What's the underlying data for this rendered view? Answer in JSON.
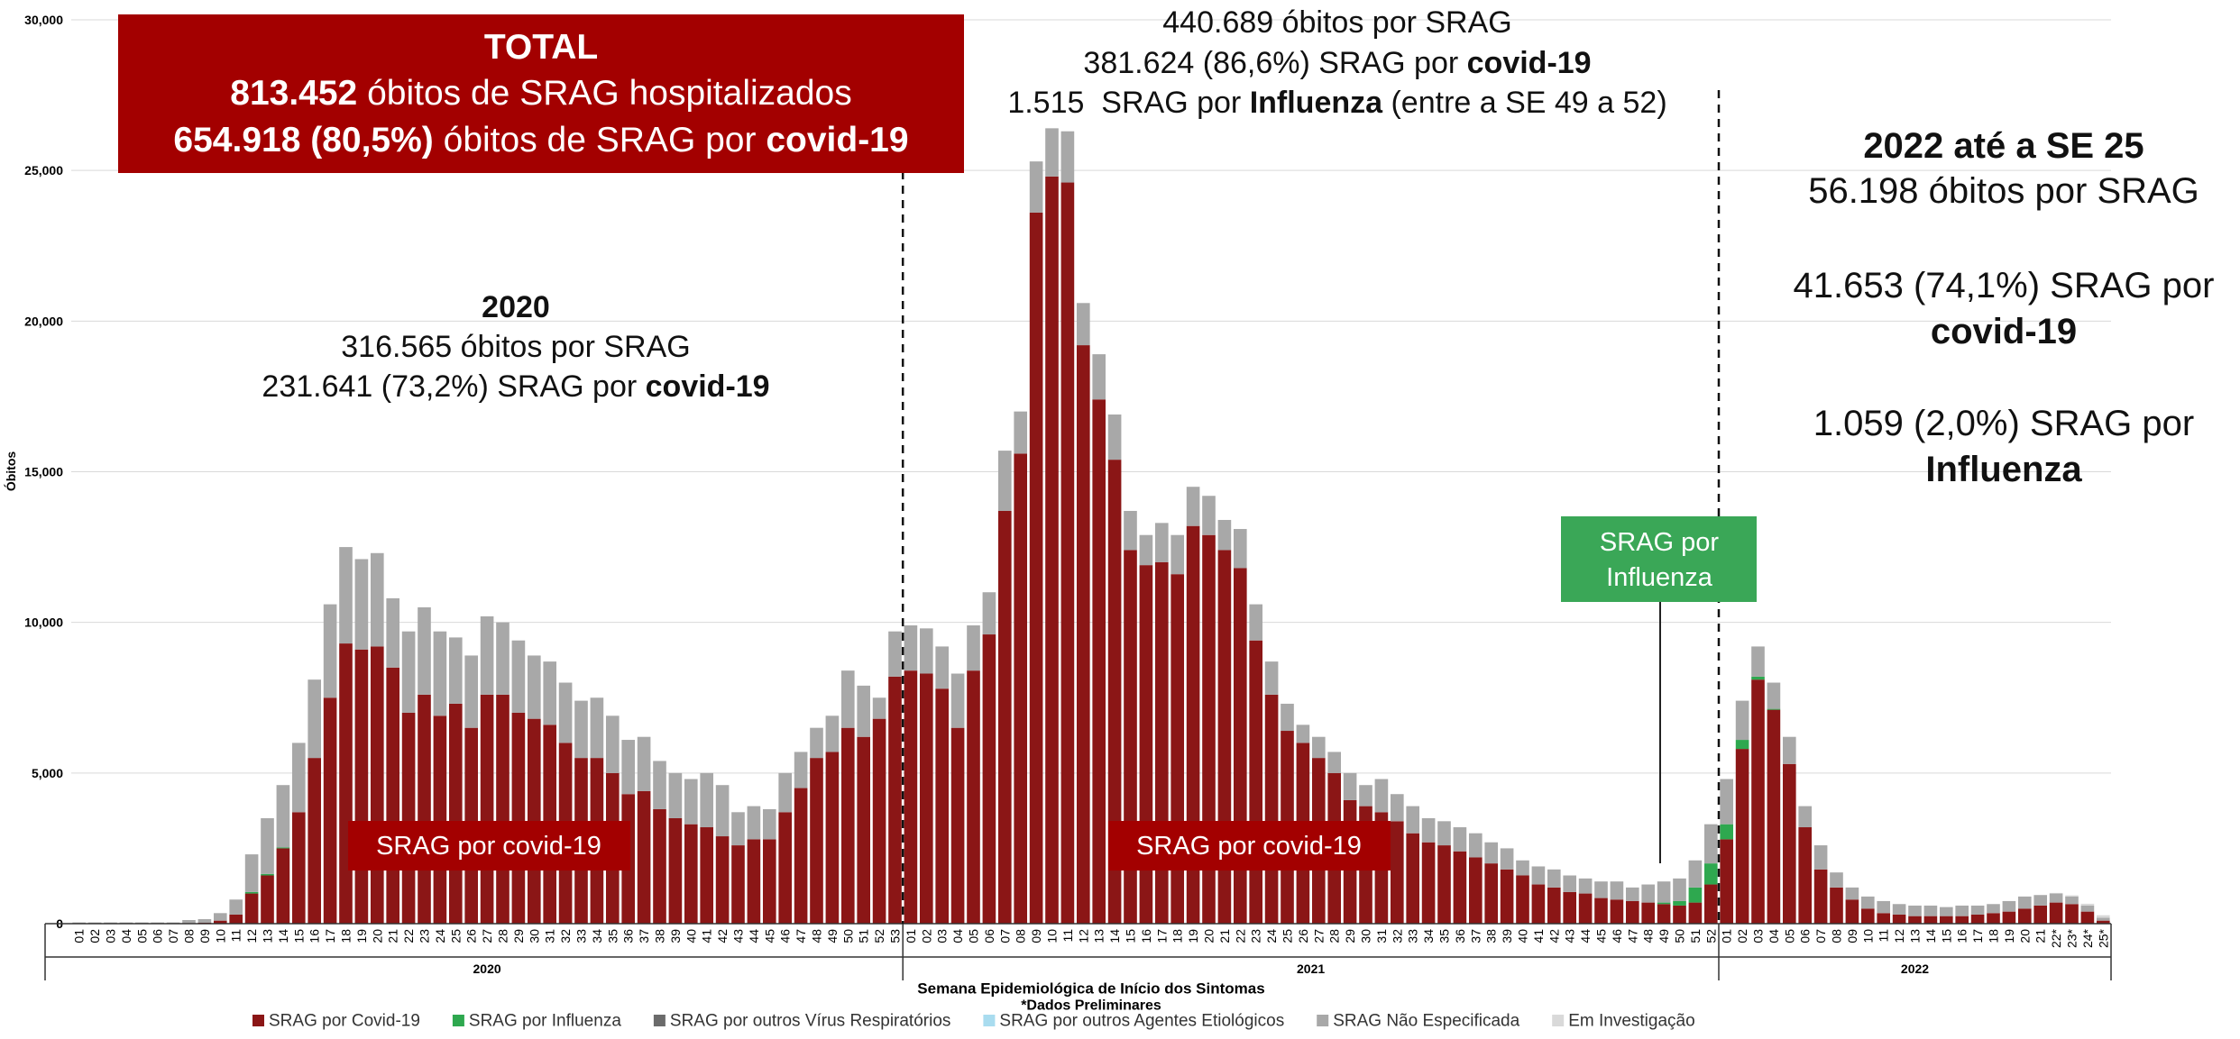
{
  "chart_data": {
    "type": "stacked_bar",
    "y_label": "Óbitos",
    "x_label": "Semana Epidemiológica de Início dos Sintomas",
    "note": "*Dados Preliminares",
    "groups": [
      "2020",
      "2021",
      "2022"
    ],
    "categories": [
      "01",
      "02",
      "03",
      "04",
      "05",
      "06",
      "07",
      "08",
      "09",
      "10",
      "11",
      "12",
      "13",
      "14",
      "15",
      "16",
      "17",
      "18",
      "19",
      "20",
      "21",
      "22",
      "23",
      "24",
      "25",
      "26",
      "27",
      "28",
      "29",
      "30",
      "31",
      "32",
      "33",
      "34",
      "35",
      "36",
      "37",
      "38",
      "39",
      "40",
      "41",
      "42",
      "43",
      "44",
      "45",
      "46",
      "47",
      "48",
      "49",
      "50",
      "51",
      "52",
      "53",
      "01",
      "02",
      "03",
      "04",
      "05",
      "06",
      "07",
      "08",
      "09",
      "10",
      "11",
      "12",
      "13",
      "14",
      "15",
      "16",
      "17",
      "18",
      "19",
      "20",
      "21",
      "22",
      "23",
      "24",
      "25",
      "26",
      "27",
      "28",
      "29",
      "30",
      "31",
      "32",
      "33",
      "34",
      "35",
      "36",
      "37",
      "38",
      "39",
      "40",
      "41",
      "42",
      "43",
      "44",
      "45",
      "46",
      "47",
      "48",
      "49",
      "50",
      "51",
      "52",
      "01",
      "02",
      "03",
      "04",
      "05",
      "06",
      "07",
      "08",
      "09",
      "10",
      "11",
      "12",
      "13",
      "14",
      "15",
      "16",
      "17",
      "18",
      "19",
      "20",
      "21",
      "22*",
      "23*",
      "24*",
      "25*"
    ],
    "ylim": [
      0,
      30000
    ],
    "yticks": [
      0,
      {
        "value": 5000,
        "label": "5,000"
      },
      {
        "value": 10000,
        "label": "10,000"
      },
      {
        "value": 15000,
        "label": "15,000"
      },
      {
        "value": 20000,
        "label": "20,000"
      },
      {
        "value": 25000,
        "label": "25,000"
      },
      {
        "value": 30000,
        "label": "30,000"
      }
    ],
    "grid": true,
    "legend": "bottom",
    "series": [
      {
        "name": "SRAG por Covid-19",
        "color": "#8b1616",
        "values": [
          10,
          10,
          10,
          10,
          10,
          10,
          10,
          20,
          30,
          100,
          300,
          1000,
          1600,
          2500,
          3700,
          5500,
          7500,
          9300,
          9100,
          9200,
          8500,
          7000,
          7600,
          6900,
          7300,
          6500,
          7600,
          7600,
          7000,
          6800,
          6600,
          6000,
          5500,
          5500,
          5000,
          4300,
          4400,
          3800,
          3500,
          3300,
          3200,
          2900,
          2600,
          2800,
          2800,
          3700,
          4500,
          5500,
          5700,
          6500,
          6200,
          6800,
          8200,
          8400,
          8300,
          7800,
          6500,
          8400,
          9600,
          13700,
          15600,
          23600,
          24800,
          24600,
          19200,
          17400,
          15400,
          12400,
          11900,
          12000,
          11600,
          13200,
          12900,
          12400,
          11800,
          9400,
          7600,
          6400,
          6000,
          5500,
          5000,
          4100,
          3900,
          3700,
          3400,
          3000,
          2700,
          2600,
          2400,
          2200,
          2000,
          1800,
          1600,
          1300,
          1200,
          1050,
          1000,
          850,
          800,
          750,
          700,
          650,
          600,
          700,
          1300,
          2800,
          5800,
          8100,
          7100,
          5300,
          3200,
          1800,
          1200,
          800,
          500,
          350,
          300,
          250,
          250,
          250,
          250,
          300,
          350,
          400,
          500,
          600,
          700,
          650,
          400,
          100
        ]
      },
      {
        "name": "SRAG por Influenza",
        "color": "#2ea84f",
        "values": [
          0,
          0,
          0,
          0,
          0,
          0,
          0,
          0,
          0,
          0,
          0,
          50,
          50,
          30,
          0,
          0,
          0,
          0,
          0,
          0,
          0,
          0,
          0,
          0,
          0,
          0,
          0,
          0,
          0,
          0,
          0,
          0,
          0,
          0,
          0,
          0,
          0,
          0,
          0,
          0,
          0,
          0,
          0,
          0,
          0,
          0,
          0,
          0,
          0,
          0,
          0,
          0,
          0,
          0,
          0,
          0,
          0,
          0,
          0,
          0,
          0,
          0,
          0,
          0,
          0,
          0,
          0,
          0,
          0,
          0,
          0,
          0,
          0,
          0,
          0,
          0,
          0,
          0,
          0,
          0,
          0,
          0,
          0,
          0,
          0,
          0,
          0,
          0,
          0,
          0,
          0,
          0,
          0,
          0,
          0,
          0,
          0,
          0,
          0,
          0,
          0,
          50,
          150,
          500,
          700,
          500,
          300,
          100,
          30,
          0,
          0,
          0,
          0,
          0,
          0,
          0,
          0,
          0,
          0,
          0,
          0,
          0,
          0,
          0,
          0,
          0,
          0,
          0,
          0,
          0
        ]
      },
      {
        "name": "SRAG por outros Vírus Respiratórios",
        "color": "#6b6b6b",
        "values": [
          0,
          0,
          0,
          0,
          0,
          0,
          0,
          0,
          0,
          0,
          0,
          0,
          0,
          0,
          0,
          0,
          0,
          0,
          0,
          0,
          0,
          0,
          0,
          0,
          0,
          0,
          0,
          0,
          0,
          0,
          0,
          0,
          0,
          0,
          0,
          0,
          0,
          0,
          0,
          0,
          0,
          0,
          0,
          0,
          0,
          0,
          0,
          0,
          0,
          0,
          0,
          0,
          0,
          0,
          0,
          0,
          0,
          0,
          0,
          0,
          0,
          0,
          0,
          0,
          0,
          0,
          0,
          0,
          0,
          0,
          0,
          0,
          0,
          0,
          0,
          0,
          0,
          0,
          0,
          0,
          0,
          0,
          0,
          0,
          0,
          0,
          0,
          0,
          0,
          0,
          0,
          0,
          0,
          0,
          0,
          0,
          0,
          0,
          0,
          0,
          0,
          0,
          0,
          0,
          0,
          0,
          0,
          0,
          0,
          0,
          0,
          0,
          0,
          0,
          0,
          0,
          0,
          0,
          0,
          0,
          0,
          0,
          0,
          0,
          0,
          0,
          0,
          0,
          0,
          0
        ]
      },
      {
        "name": "SRAG por outros Agentes Etiológicos",
        "color": "#a9dcef",
        "values": [
          0,
          0,
          0,
          0,
          0,
          0,
          0,
          0,
          0,
          0,
          0,
          0,
          0,
          0,
          0,
          0,
          0,
          0,
          0,
          0,
          0,
          0,
          0,
          0,
          0,
          0,
          0,
          0,
          0,
          0,
          0,
          0,
          0,
          0,
          0,
          0,
          0,
          0,
          0,
          0,
          0,
          0,
          0,
          0,
          0,
          0,
          0,
          0,
          0,
          0,
          0,
          0,
          0,
          0,
          0,
          0,
          0,
          0,
          0,
          0,
          0,
          0,
          0,
          0,
          0,
          0,
          0,
          0,
          0,
          0,
          0,
          0,
          0,
          0,
          0,
          0,
          0,
          0,
          0,
          0,
          0,
          0,
          0,
          0,
          0,
          0,
          0,
          0,
          0,
          0,
          0,
          0,
          0,
          0,
          0,
          0,
          0,
          0,
          0,
          0,
          0,
          0,
          0,
          0,
          0,
          0,
          0,
          0,
          0,
          0,
          0,
          0,
          0,
          0,
          0,
          0,
          0,
          0,
          0,
          0,
          0,
          0,
          0,
          0,
          0,
          0,
          0,
          0,
          0,
          0
        ]
      },
      {
        "name": "SRAG Não Especificada",
        "color": "#a8a8a8",
        "values": [
          30,
          30,
          30,
          30,
          30,
          30,
          30,
          100,
          120,
          250,
          500,
          1250,
          1850,
          2070,
          2300,
          2600,
          3100,
          3200,
          3000,
          3100,
          2300,
          2700,
          2900,
          2800,
          2200,
          2400,
          2600,
          2400,
          2400,
          2100,
          2100,
          2000,
          1900,
          2000,
          1900,
          1800,
          1800,
          1600,
          1500,
          1500,
          1800,
          1700,
          1100,
          1100,
          1000,
          1300,
          1200,
          1000,
          1200,
          1900,
          1700,
          700,
          1500,
          1500,
          1500,
          1400,
          1800,
          1500,
          1400,
          2000,
          1400,
          1700,
          1600,
          1700,
          1400,
          1500,
          1500,
          1300,
          1000,
          1300,
          1300,
          1300,
          1300,
          1000,
          1300,
          1200,
          1100,
          900,
          600,
          700,
          700,
          900,
          700,
          1100,
          900,
          900,
          800,
          800,
          800,
          800,
          700,
          700,
          500,
          600,
          600,
          550,
          500,
          550,
          600,
          450,
          600,
          700,
          750,
          900,
          1300,
          1500,
          1300,
          1000,
          870,
          900,
          700,
          800,
          500,
          400,
          400,
          400,
          350,
          350,
          350,
          300,
          350,
          300,
          300,
          350,
          400,
          350,
          300,
          250,
          200,
          100
        ]
      },
      {
        "name": "Em Investigação",
        "color": "#d9d9d9",
        "values": [
          0,
          0,
          0,
          0,
          0,
          0,
          0,
          0,
          0,
          0,
          0,
          0,
          0,
          0,
          0,
          0,
          0,
          0,
          0,
          0,
          0,
          0,
          0,
          0,
          0,
          0,
          0,
          0,
          0,
          0,
          0,
          0,
          0,
          0,
          0,
          0,
          0,
          0,
          0,
          0,
          0,
          0,
          0,
          0,
          0,
          0,
          0,
          0,
          0,
          0,
          0,
          0,
          0,
          0,
          0,
          0,
          0,
          0,
          0,
          0,
          0,
          0,
          0,
          0,
          0,
          0,
          0,
          0,
          0,
          0,
          0,
          0,
          0,
          0,
          0,
          0,
          0,
          0,
          0,
          0,
          0,
          0,
          0,
          0,
          0,
          0,
          0,
          0,
          0,
          0,
          0,
          0,
          0,
          0,
          0,
          0,
          0,
          0,
          0,
          0,
          0,
          0,
          0,
          0,
          0,
          0,
          0,
          0,
          0,
          0,
          0,
          0,
          0,
          0,
          0,
          0,
          0,
          0,
          0,
          0,
          0,
          0,
          0,
          0,
          0,
          0,
          20,
          40,
          60,
          80
        ]
      }
    ],
    "annotations": [
      {
        "color": "#a30000",
        "lines": [
          [
            {
              "text": "TOTAL",
              "bold": true
            }
          ],
          [
            {
              "text": "813.452",
              "bold": true
            },
            {
              "text": " óbitos de SRAG hospitalizados",
              "bold": false
            }
          ],
          [
            {
              "text": "654.918 (80,5%)",
              "bold": true
            },
            {
              "text": " óbitos de SRAG por ",
              "bold": false
            },
            {
              "text": "covid-19",
              "bold": true
            }
          ]
        ]
      },
      {
        "lines": [
          [
            {
              "text": "2020",
              "bold": true
            }
          ],
          [
            {
              "text": "316.565 óbitos por SRAG",
              "bold": false
            }
          ],
          [
            {
              "text": "231.641 (73,2%) SRAG por ",
              "bold": false
            },
            {
              "text": "covid-19",
              "bold": true
            }
          ]
        ]
      },
      {
        "lines": [
          [
            {
              "text": "440.689 óbitos por SRAG",
              "bold": false
            }
          ],
          [
            {
              "text": "381.624 (86,6%) SRAG por ",
              "bold": false
            },
            {
              "text": "covid-19",
              "bold": true
            }
          ],
          [
            {
              "text": "1.515  SRAG por ",
              "bold": false
            },
            {
              "text": "Influenza",
              "bold": true
            },
            {
              "text": " (entre a SE 49 a 52)",
              "bold": false
            }
          ]
        ]
      },
      {
        "lines": [
          [
            {
              "text": "2022 até a SE 25",
              "bold": true
            }
          ],
          [
            {
              "text": "56.198 óbitos por SRAG",
              "bold": false
            }
          ],
          [
            {
              "text": "41.653 (74,1%) SRAG por",
              "bold": false
            }
          ],
          [
            {
              "text": "covid-19",
              "bold": true
            }
          ],
          [
            {
              "text": "1.059 (2,0%) SRAG por",
              "bold": false
            }
          ],
          [
            {
              "text": "Influenza",
              "bold": true
            }
          ]
        ]
      },
      {
        "color": "#a30000",
        "lines": [
          [
            {
              "text": "SRAG por covid-19",
              "bold": false
            }
          ]
        ]
      },
      {
        "color": "#a30000",
        "lines": [
          [
            {
              "text": "SRAG por covid-19",
              "bold": false
            }
          ]
        ]
      },
      {
        "color": "#3aa757",
        "lines": [
          [
            {
              "text": "SRAG por",
              "bold": false
            }
          ],
          [
            {
              "text": "Influenza",
              "bold": false
            }
          ]
        ]
      }
    ]
  }
}
